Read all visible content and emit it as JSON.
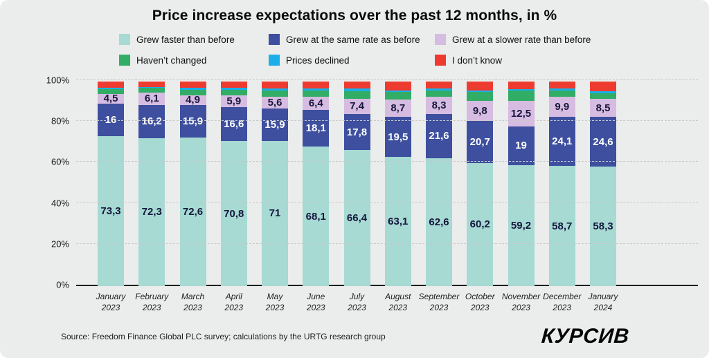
{
  "title": "Price increase expectations over the past 12 months, in %",
  "legend": [
    {
      "label": "Grew faster than before",
      "color": "#a6dad3"
    },
    {
      "label": "Grew at the same rate as before",
      "color": "#3d4f9e"
    },
    {
      "label": "Grew at a slower rate than before",
      "color": "#d7bce1"
    },
    {
      "label": "Haven’t changed",
      "color": "#31ad66"
    },
    {
      "label": "Prices declined",
      "color": "#1bafe9"
    },
    {
      "label": "I don’t know",
      "color": "#ee3b30"
    }
  ],
  "chart_data": {
    "type": "bar",
    "stacked": true,
    "title": "Price increase expectations over the past 12 months, in %",
    "ylim": [
      0,
      100
    ],
    "yticks": [
      "0%",
      "20%",
      "40%",
      "60%",
      "80%",
      "100%"
    ],
    "grid": "dashed horizontal",
    "legend_position": "top",
    "categories": [
      {
        "month": "January",
        "year": "2023"
      },
      {
        "month": "February",
        "year": "2023"
      },
      {
        "month": "March",
        "year": "2023"
      },
      {
        "month": "April",
        "year": "2023"
      },
      {
        "month": "May",
        "year": "2023"
      },
      {
        "month": "June",
        "year": "2023"
      },
      {
        "month": "July",
        "year": "2023"
      },
      {
        "month": "August",
        "year": "2023"
      },
      {
        "month": "September",
        "year": "2023"
      },
      {
        "month": "October",
        "year": "2023"
      },
      {
        "month": "November",
        "year": "2023"
      },
      {
        "month": "December",
        "year": "2023"
      },
      {
        "month": "January",
        "year": "2024"
      }
    ],
    "series": [
      {
        "key": "grew-faster",
        "name": "Grew faster than before",
        "color": "#a6dad3",
        "label_style": "dark",
        "values": [
          73.3,
          72.3,
          72.6,
          70.8,
          71,
          68.1,
          66.4,
          63.1,
          62.6,
          60.2,
          59.2,
          58.7,
          58.3
        ],
        "labels": [
          "73,3",
          "72,3",
          "72,6",
          "70,8",
          "71",
          "68,1",
          "66,4",
          "63,1",
          "62,6",
          "60,2",
          "59,2",
          "58,7",
          "58,3"
        ]
      },
      {
        "key": "same-rate",
        "name": "Grew at the same rate as before",
        "color": "#3d4f9e",
        "label_style": "light",
        "values": [
          16,
          16.2,
          15.9,
          16.6,
          15.9,
          18.1,
          17.8,
          19.5,
          21.6,
          20.7,
          19,
          24.1,
          24.6
        ],
        "labels": [
          "16",
          "16,2",
          "15,9",
          "16,6",
          "15,9",
          "18,1",
          "17,8",
          "19,5",
          "21,6",
          "20,7",
          "19",
          "24,1",
          "24,6"
        ]
      },
      {
        "key": "slower-rate",
        "name": "Grew at a slower rate than before",
        "color": "#d7bce1",
        "label_style": "dark",
        "values": [
          4.5,
          6.1,
          4.9,
          5.9,
          5.6,
          6.4,
          7.4,
          8.7,
          8.3,
          9.8,
          12.5,
          9.9,
          8.5
        ],
        "labels": [
          "4,5",
          "6,1",
          "4,9",
          "5,9",
          "5,6",
          "6,4",
          "7,4",
          "8,7",
          "8,3",
          "9,8",
          "12,5",
          "9,9",
          "8,5"
        ]
      },
      {
        "key": "havent-changed",
        "name": "Haven’t changed",
        "color": "#31ad66",
        "label_style": "dark",
        "values": [
          2.5,
          2.2,
          2.7,
          2.8,
          3.2,
          3.1,
          3.7,
          3.5,
          3.2,
          4.3,
          4.9,
          3.0,
          2.9
        ],
        "labels": []
      },
      {
        "key": "prices-declined",
        "name": "Prices declined",
        "color": "#1bafe9",
        "label_style": "dark",
        "values": [
          0.7,
          0.6,
          0.7,
          0.7,
          0.8,
          0.8,
          1.2,
          0.8,
          0.8,
          0.5,
          0.6,
          0.9,
          0.9
        ],
        "labels": []
      },
      {
        "key": "dont-know",
        "name": "I don’t know",
        "color": "#ee3b30",
        "label_style": "dark",
        "values": [
          3.0,
          2.6,
          3.2,
          3.2,
          3.5,
          3.5,
          3.5,
          4.4,
          3.5,
          4.5,
          3.8,
          3.4,
          4.8
        ],
        "labels": []
      }
    ]
  },
  "footer": {
    "source": "Source: Freedom Finance Global PLC survey; calculations by the URTG research group",
    "logo": "КУРСИВ"
  }
}
